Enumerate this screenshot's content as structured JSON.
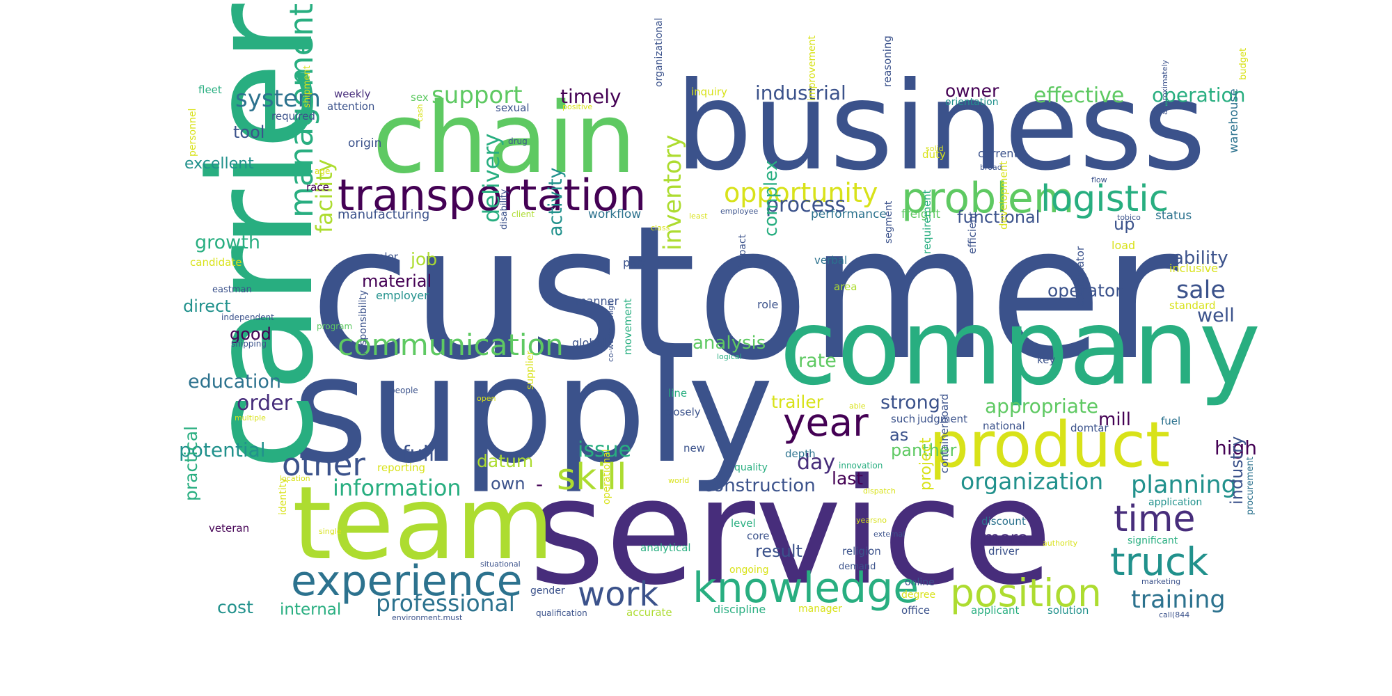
{
  "palette": {
    "dark_purple": "#440154",
    "purple": "#472d7b",
    "indigo": "#3b528b",
    "steel": "#2c728e",
    "teal": "#21918c",
    "green_teal": "#28ae80",
    "green": "#5ec962",
    "lime": "#addc30",
    "yellow": "#d8e219"
  },
  "words": [
    {
      "text": "customer",
      "color": "indigo"
    },
    {
      "text": "service",
      "color": "purple"
    },
    {
      "text": "supply",
      "color": "indigo"
    },
    {
      "text": "business",
      "color": "indigo"
    },
    {
      "text": "carrier",
      "color": "green_teal"
    },
    {
      "text": "team",
      "color": "lime"
    },
    {
      "text": "company",
      "color": "green_teal"
    },
    {
      "text": "chain",
      "color": "green"
    },
    {
      "text": "product",
      "color": "yellow"
    },
    {
      "text": "transportation",
      "color": "dark_purple"
    },
    {
      "text": "knowledge",
      "color": "green_teal"
    },
    {
      "text": "experience",
      "color": "steel"
    },
    {
      "text": "problem",
      "color": "green"
    },
    {
      "text": "position",
      "color": "lime"
    },
    {
      "text": "truck",
      "color": "teal"
    },
    {
      "text": "time",
      "color": "purple"
    },
    {
      "text": "logistic",
      "color": "green_teal"
    },
    {
      "text": "management",
      "color": "green_teal"
    },
    {
      "text": "communication",
      "color": "green"
    },
    {
      "text": "work",
      "color": "indigo"
    },
    {
      "text": "skill",
      "color": "lime"
    },
    {
      "text": "year",
      "color": "dark_purple"
    },
    {
      "text": "other",
      "color": "indigo"
    },
    {
      "text": "opportunity",
      "color": "yellow"
    },
    {
      "text": "information",
      "color": "green_teal"
    },
    {
      "text": "professional",
      "color": "steel"
    },
    {
      "text": "training",
      "color": "steel"
    },
    {
      "text": "organization",
      "color": "teal"
    },
    {
      "text": "planning",
      "color": "teal"
    },
    {
      "text": "system",
      "color": "steel"
    },
    {
      "text": "support",
      "color": "green"
    },
    {
      "text": "effective",
      "color": "green"
    },
    {
      "text": "operation",
      "color": "green_teal"
    },
    {
      "text": "inventory",
      "color": "lime"
    },
    {
      "text": "facility",
      "color": "lime"
    },
    {
      "text": "delivery",
      "color": "green_teal"
    },
    {
      "text": "sale",
      "color": "indigo"
    },
    {
      "text": "process",
      "color": "indigo"
    },
    {
      "text": "industrial",
      "color": "indigo"
    },
    {
      "text": "timely",
      "color": "dark_purple"
    },
    {
      "text": "owner",
      "color": "dark_purple"
    },
    {
      "text": "appropriate",
      "color": "green"
    },
    {
      "text": "construction",
      "color": "indigo"
    },
    {
      "text": "analysis",
      "color": "green"
    },
    {
      "text": "strong",
      "color": "indigo"
    },
    {
      "text": "complex",
      "color": "green_teal"
    },
    {
      "text": "ability",
      "color": "indigo"
    },
    {
      "text": "functional",
      "color": "indigo"
    },
    {
      "text": "growth",
      "color": "green_teal"
    },
    {
      "text": "excellent",
      "color": "teal"
    },
    {
      "text": "education",
      "color": "steel"
    },
    {
      "text": "potential",
      "color": "teal"
    },
    {
      "text": "full",
      "color": "indigo"
    },
    {
      "text": "issue",
      "color": "green_teal"
    },
    {
      "text": "datum",
      "color": "lime"
    },
    {
      "text": "day",
      "color": "purple"
    },
    {
      "text": "rate",
      "color": "green"
    },
    {
      "text": "trailer",
      "color": "yellow"
    },
    {
      "text": "order",
      "color": "purple"
    },
    {
      "text": "high",
      "color": "dark_purple"
    },
    {
      "text": "mill",
      "color": "dark_purple"
    },
    {
      "text": "job",
      "color": "lime"
    },
    {
      "text": "material",
      "color": "dark_purple"
    },
    {
      "text": "activity",
      "color": "teal"
    },
    {
      "text": "operator",
      "color": "indigo"
    },
    {
      "text": "well",
      "color": "indigo"
    },
    {
      "text": "more",
      "color": "purple"
    },
    {
      "text": "industry",
      "color": "indigo"
    },
    {
      "text": "cost",
      "color": "teal"
    },
    {
      "text": "internal",
      "color": "green_teal"
    },
    {
      "text": "practical",
      "color": "green_teal"
    },
    {
      "text": "direct",
      "color": "teal"
    },
    {
      "text": "good",
      "color": "dark_purple"
    },
    {
      "text": "tool",
      "color": "indigo"
    },
    {
      "text": "own",
      "color": "indigo"
    },
    {
      "text": "as",
      "color": "indigo"
    },
    {
      "text": "panther",
      "color": "green"
    },
    {
      "text": "last",
      "color": "dark_purple"
    },
    {
      "text": "result",
      "color": "indigo"
    },
    {
      "text": "up",
      "color": "indigo"
    },
    {
      "text": "-",
      "color": "dark_purple"
    },
    {
      "text": "project",
      "color": "yellow"
    },
    {
      "text": "manufacturing",
      "color": "indigo"
    },
    {
      "text": "workflow",
      "color": "steel"
    },
    {
      "text": "performance",
      "color": "steel"
    },
    {
      "text": "freight",
      "color": "green"
    },
    {
      "text": "status",
      "color": "steel"
    },
    {
      "text": "warehouse",
      "color": "steel"
    },
    {
      "text": "load",
      "color": "yellow"
    },
    {
      "text": "inclusive",
      "color": "yellow"
    },
    {
      "text": "standard",
      "color": "yellow"
    },
    {
      "text": "origin",
      "color": "indigo"
    },
    {
      "text": "weekly",
      "color": "purple"
    },
    {
      "text": "attention",
      "color": "indigo"
    },
    {
      "text": "required",
      "color": "indigo"
    },
    {
      "text": "fleet",
      "color": "green_teal"
    },
    {
      "text": "sex",
      "color": "green"
    },
    {
      "text": "sexual",
      "color": "indigo"
    },
    {
      "text": "inquiry",
      "color": "yellow"
    },
    {
      "text": "orientation",
      "color": "teal"
    },
    {
      "text": "current",
      "color": "indigo"
    },
    {
      "text": "duty",
      "color": "yellow"
    },
    {
      "text": "race",
      "color": "dark_purple"
    },
    {
      "text": "age",
      "color": "yellow"
    },
    {
      "text": "candidate",
      "color": "yellow"
    },
    {
      "text": "eastman",
      "color": "indigo"
    },
    {
      "text": "independent",
      "color": "indigo"
    },
    {
      "text": "program",
      "color": "green"
    },
    {
      "text": "shipping",
      "color": "indigo"
    },
    {
      "text": "color",
      "color": "indigo"
    },
    {
      "text": "employer",
      "color": "teal"
    },
    {
      "text": "part",
      "color": "indigo"
    },
    {
      "text": "manner",
      "color": "indigo"
    },
    {
      "text": "global",
      "color": "indigo"
    },
    {
      "text": "closely",
      "color": "indigo"
    },
    {
      "text": "line",
      "color": "green_teal"
    },
    {
      "text": "new",
      "color": "indigo"
    },
    {
      "text": "verbal",
      "color": "steel"
    },
    {
      "text": "area",
      "color": "lime"
    },
    {
      "text": "role",
      "color": "indigo"
    },
    {
      "text": "impact",
      "color": "indigo"
    },
    {
      "text": "key",
      "color": "indigo"
    },
    {
      "text": "depth",
      "color": "steel"
    },
    {
      "text": "judgment",
      "color": "indigo"
    },
    {
      "text": "such",
      "color": "indigo"
    },
    {
      "text": "national",
      "color": "indigo"
    },
    {
      "text": "domtar",
      "color": "indigo"
    },
    {
      "text": "fuel",
      "color": "steel"
    },
    {
      "text": "quality",
      "color": "green_teal"
    },
    {
      "text": "innovation",
      "color": "green_teal"
    },
    {
      "text": "reporting",
      "color": "yellow"
    },
    {
      "text": "location",
      "color": "yellow"
    },
    {
      "text": "veteran",
      "color": "dark_purple"
    },
    {
      "text": "identity",
      "color": "yellow"
    },
    {
      "text": "single",
      "color": "yellow"
    },
    {
      "text": "situational",
      "color": "indigo"
    },
    {
      "text": "gender",
      "color": "indigo"
    },
    {
      "text": "qualification",
      "color": "indigo"
    },
    {
      "text": "environment.must",
      "color": "indigo"
    },
    {
      "text": "accurate",
      "color": "lime"
    },
    {
      "text": "discipline",
      "color": "green_teal"
    },
    {
      "text": "manager",
      "color": "yellow"
    },
    {
      "text": "office",
      "color": "indigo"
    },
    {
      "text": "applicant",
      "color": "green_teal"
    },
    {
      "text": "solution",
      "color": "teal"
    },
    {
      "text": "call(844",
      "color": "indigo"
    },
    {
      "text": "analytical",
      "color": "green_teal"
    },
    {
      "text": "ongoing",
      "color": "yellow"
    },
    {
      "text": "core",
      "color": "indigo"
    },
    {
      "text": "religion",
      "color": "indigo"
    },
    {
      "text": "demand",
      "color": "indigo"
    },
    {
      "text": "online",
      "color": "indigo"
    },
    {
      "text": "degree",
      "color": "yellow"
    },
    {
      "text": "external",
      "color": "indigo"
    },
    {
      "text": "authority",
      "color": "yellow"
    },
    {
      "text": "discount",
      "color": "steel"
    },
    {
      "text": "driver",
      "color": "indigo"
    },
    {
      "text": "significant",
      "color": "green_teal"
    },
    {
      "text": "marketing",
      "color": "indigo"
    },
    {
      "text": "application",
      "color": "teal"
    },
    {
      "text": "procurement",
      "color": "steel"
    },
    {
      "text": "level",
      "color": "green_teal"
    },
    {
      "text": "yearsno",
      "color": "yellow"
    },
    {
      "text": "dispatch",
      "color": "yellow"
    },
    {
      "text": "world",
      "color": "yellow"
    },
    {
      "text": "supplier",
      "color": "yellow"
    },
    {
      "text": "people",
      "color": "indigo"
    },
    {
      "text": "multiple",
      "color": "yellow"
    },
    {
      "text": "open",
      "color": "yellow"
    },
    {
      "text": "able",
      "color": "yellow"
    },
    {
      "text": "logical",
      "color": "green_teal"
    },
    {
      "text": "client",
      "color": "lime"
    },
    {
      "text": "class",
      "color": "yellow"
    },
    {
      "text": "employee",
      "color": "indigo"
    },
    {
      "text": "least",
      "color": "yellow"
    },
    {
      "text": "tobico",
      "color": "indigo"
    },
    {
      "text": "flow",
      "color": "indigo"
    },
    {
      "text": "solid",
      "color": "yellow"
    },
    {
      "text": "broad",
      "color": "indigo"
    },
    {
      "text": "positive",
      "color": "yellow"
    },
    {
      "text": "cash",
      "color": "yellow"
    },
    {
      "text": "drug",
      "color": "indigo"
    },
    {
      "text": "personnel",
      "color": "yellow"
    },
    {
      "text": "shipment",
      "color": "yellow"
    },
    {
      "text": "disability",
      "color": "indigo"
    },
    {
      "text": "responsibility",
      "color": "indigo"
    },
    {
      "text": "movement",
      "color": "green_teal"
    },
    {
      "text": "co-workers.high",
      "color": "indigo"
    },
    {
      "text": "operational",
      "color": "yellow"
    },
    {
      "text": "organizational",
      "color": "indigo"
    },
    {
      "text": "improvement",
      "color": "yellow"
    },
    {
      "text": "reasoning",
      "color": "indigo"
    },
    {
      "text": "approximately",
      "color": "indigo"
    },
    {
      "text": "budget",
      "color": "yellow"
    },
    {
      "text": "segment",
      "color": "indigo"
    },
    {
      "text": "requirement",
      "color": "green_teal"
    },
    {
      "text": "efficient",
      "color": "indigo"
    },
    {
      "text": "development",
      "color": "yellow"
    },
    {
      "text": "coordinator",
      "color": "indigo"
    },
    {
      "text": "containerboard",
      "color": "indigo"
    }
  ]
}
